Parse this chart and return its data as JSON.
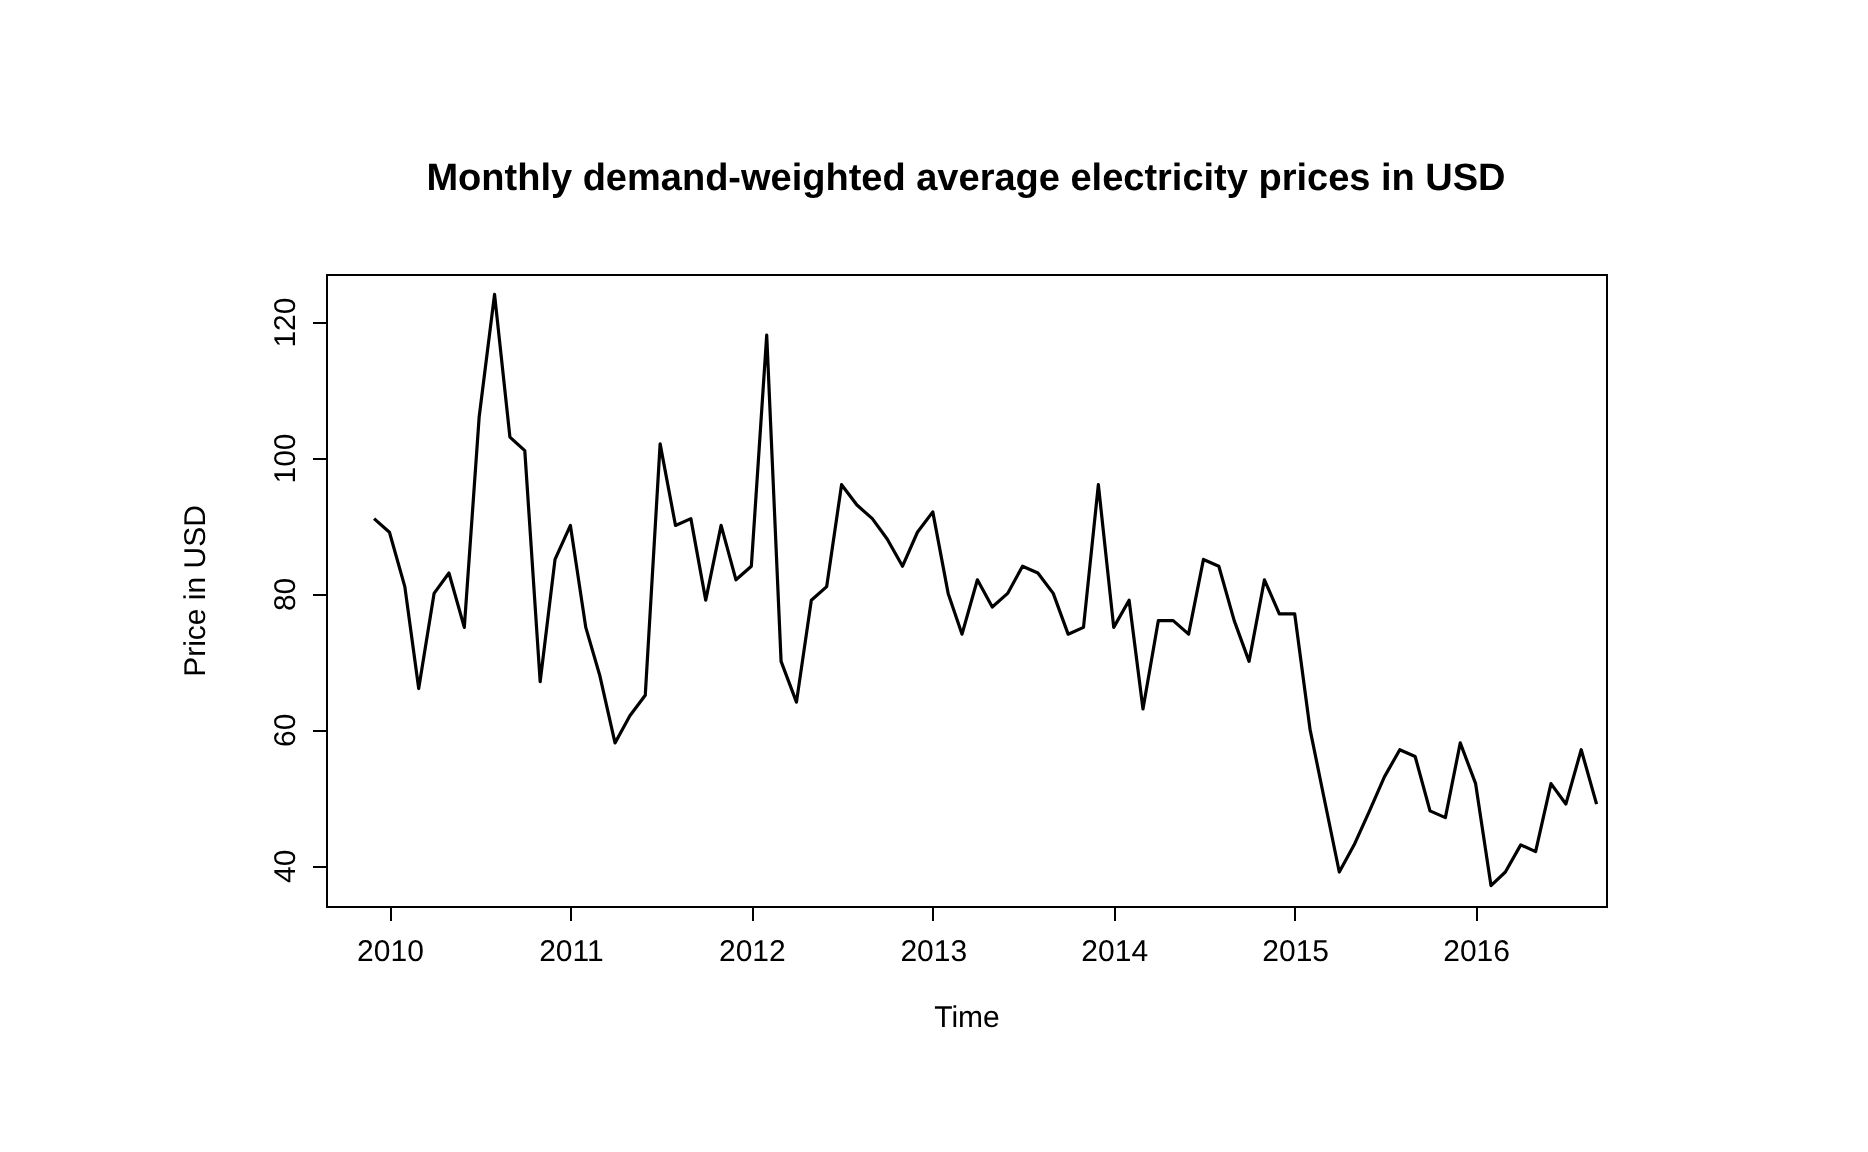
{
  "chart_data": {
    "type": "line",
    "title": "Monthly demand-weighted average electricity prices in USD",
    "xlabel": "Time",
    "ylabel": "Price in USD",
    "x": [
      "2009-12",
      "2010-01",
      "2010-02",
      "2010-03",
      "2010-04",
      "2010-05",
      "2010-06",
      "2010-07",
      "2010-08",
      "2010-09",
      "2010-10",
      "2010-11",
      "2010-12",
      "2011-01",
      "2011-02",
      "2011-03",
      "2011-04",
      "2011-05",
      "2011-06",
      "2011-07",
      "2011-08",
      "2011-09",
      "2011-10",
      "2011-11",
      "2011-12",
      "2012-01",
      "2012-02",
      "2012-03",
      "2012-04",
      "2012-05",
      "2012-06",
      "2012-07",
      "2012-08",
      "2012-09",
      "2012-10",
      "2012-11",
      "2012-12",
      "2013-01",
      "2013-02",
      "2013-03",
      "2013-04",
      "2013-05",
      "2013-06",
      "2013-07",
      "2013-08",
      "2013-09",
      "2013-10",
      "2013-11",
      "2013-12",
      "2014-01",
      "2014-02",
      "2014-03",
      "2014-04",
      "2014-05",
      "2014-06",
      "2014-07",
      "2014-08",
      "2014-09",
      "2014-10",
      "2014-11",
      "2014-12",
      "2015-01",
      "2015-02",
      "2015-03",
      "2015-04",
      "2015-05",
      "2015-06",
      "2015-07",
      "2015-08",
      "2015-09",
      "2015-10",
      "2015-11",
      "2015-12",
      "2016-01",
      "2016-02",
      "2016-03",
      "2016-04",
      "2016-05",
      "2016-06",
      "2016-07",
      "2016-08",
      "2016-09"
    ],
    "series": [
      {
        "color": "#000000",
        "values": [
          91,
          89,
          81,
          66,
          80,
          83,
          75,
          106,
          124,
          103,
          101,
          67,
          85,
          90,
          75,
          68,
          58,
          62,
          65,
          102,
          90,
          91,
          79,
          90,
          82,
          84,
          118,
          70,
          64,
          79,
          81,
          96,
          93,
          91,
          88,
          84,
          89,
          92,
          80,
          74,
          82,
          78,
          80,
          84,
          83,
          80,
          74,
          75,
          96,
          75,
          79,
          63,
          76,
          76,
          74,
          85,
          84,
          76,
          70,
          82,
          77,
          77,
          60,
          50,
          39,
          43,
          48,
          53,
          57,
          56,
          48,
          47,
          58,
          52,
          37,
          39,
          43,
          42,
          52,
          49,
          57,
          49
        ]
      }
    ],
    "xlim": [
      "2009-08-26",
      "2016-09-20"
    ],
    "xticks": [
      {
        "value": "2010-01",
        "label": "2010"
      },
      {
        "value": "2011-01",
        "label": "2011"
      },
      {
        "value": "2012-01",
        "label": "2012"
      },
      {
        "value": "2013-01",
        "label": "2013"
      },
      {
        "value": "2014-01",
        "label": "2014"
      },
      {
        "value": "2015-01",
        "label": "2015"
      },
      {
        "value": "2016-01",
        "label": "2016"
      }
    ],
    "ylim": [
      34,
      127
    ],
    "yticks": [
      40,
      60,
      80,
      100,
      120
    ],
    "grid": false,
    "marker": "none",
    "line_style": "solid"
  }
}
